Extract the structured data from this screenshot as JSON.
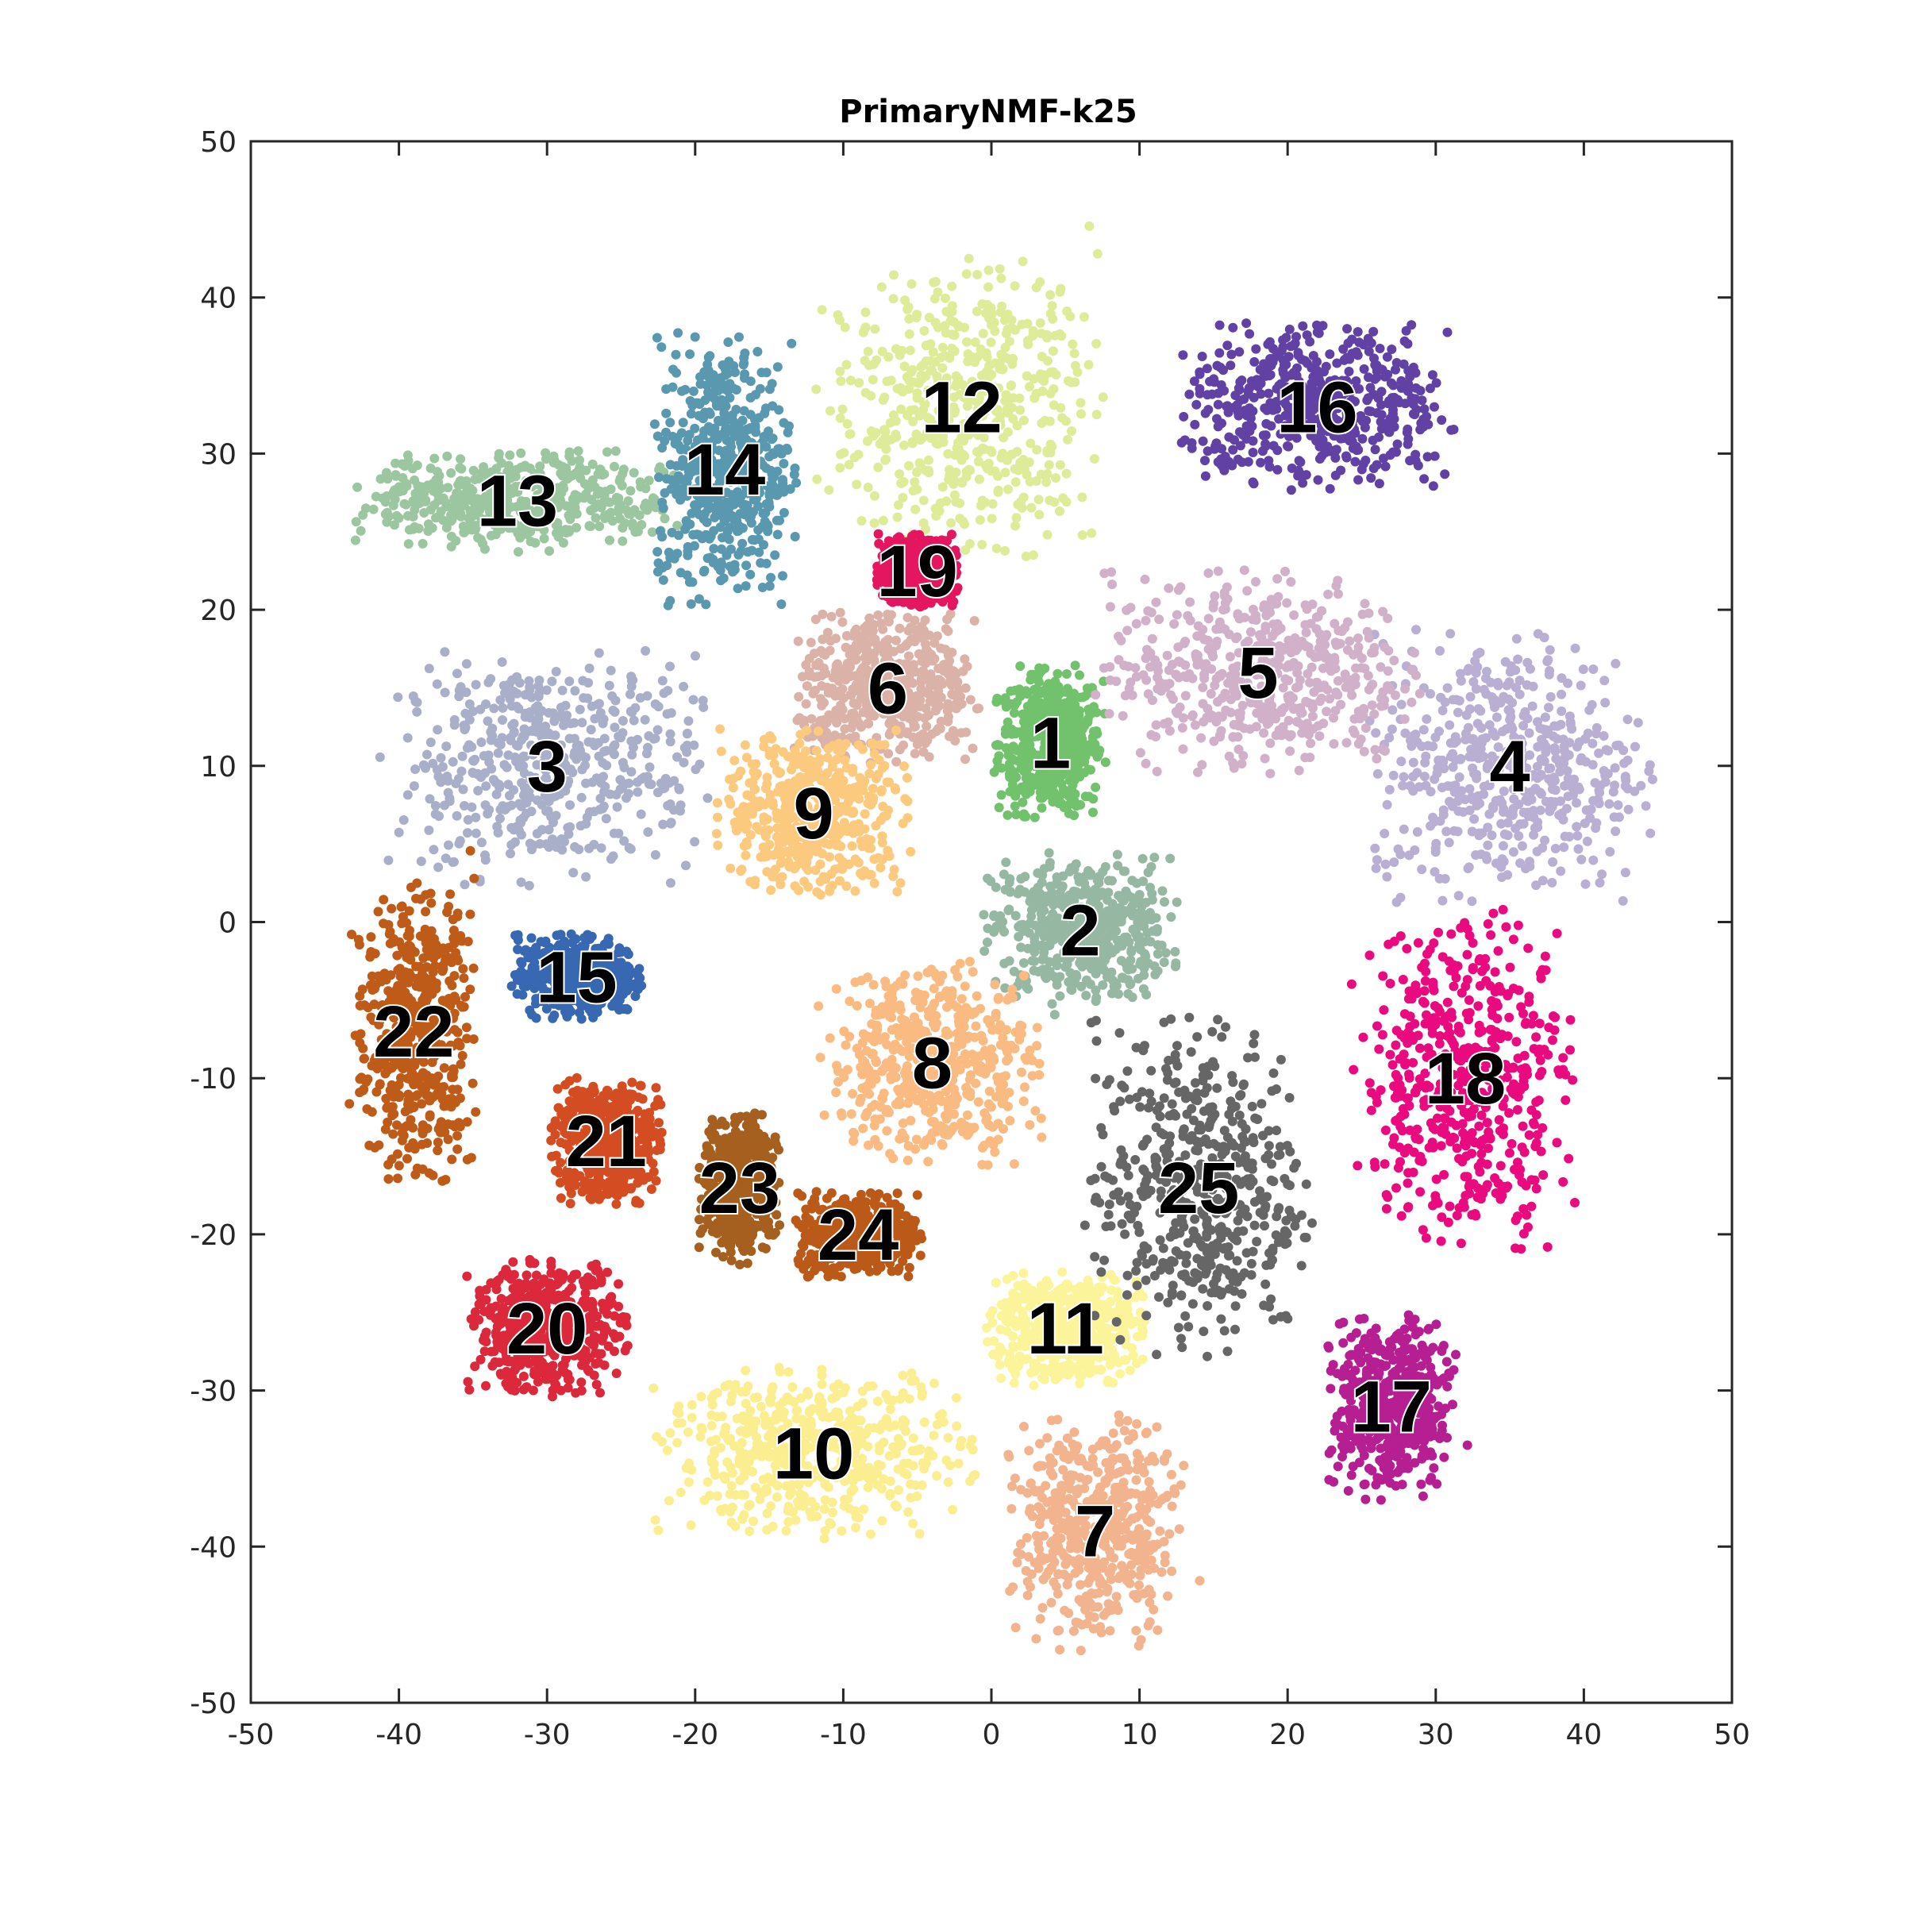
{
  "chart_data": {
    "type": "scatter",
    "title": "PrimaryNMF-k25",
    "xlabel": "",
    "ylabel": "",
    "xlim": [
      -50,
      50
    ],
    "ylim": [
      -50,
      50
    ],
    "xticks": [
      -50,
      -40,
      -30,
      -20,
      -10,
      0,
      10,
      20,
      30,
      40,
      50
    ],
    "yticks": [
      -50,
      -40,
      -30,
      -20,
      -10,
      0,
      10,
      20,
      30,
      40,
      50
    ],
    "grid": false,
    "clusters": [
      {
        "label": "1",
        "center": [
          4,
          11.5
        ],
        "spread": [
          3.5,
          4.5
        ],
        "color": "#72c26d"
      },
      {
        "label": "2",
        "center": [
          6,
          -0.5
        ],
        "spread": [
          6,
          4.5
        ],
        "color": "#96b8a3"
      },
      {
        "label": "3",
        "center": [
          -30,
          10
        ],
        "spread": [
          10,
          7
        ],
        "color": "#a9afc8"
      },
      {
        "label": "4",
        "center": [
          35,
          10
        ],
        "spread": [
          9,
          8
        ],
        "color": "#b8afd2"
      },
      {
        "label": "5",
        "center": [
          18,
          16
        ],
        "spread": [
          10,
          6
        ],
        "color": "#d1b1c9"
      },
      {
        "label": "6",
        "center": [
          -7,
          15
        ],
        "spread": [
          6,
          4.5
        ],
        "color": "#dab2a8"
      },
      {
        "label": "7",
        "center": [
          7,
          -39
        ],
        "spread": [
          5.5,
          7
        ],
        "color": "#f2b48f"
      },
      {
        "label": "8",
        "center": [
          -4,
          -9
        ],
        "spread": [
          7,
          6
        ],
        "color": "#f9bb82"
      },
      {
        "label": "9",
        "center": [
          -12,
          7
        ],
        "spread": [
          6,
          5
        ],
        "color": "#fcca7e"
      },
      {
        "label": "10",
        "center": [
          -12,
          -34
        ],
        "spread": [
          10,
          5
        ],
        "color": "#fbee91"
      },
      {
        "label": "11",
        "center": [
          5,
          -26
        ],
        "spread": [
          5,
          3.5
        ],
        "color": "#fbf49b"
      },
      {
        "label": "12",
        "center": [
          -2,
          33
        ],
        "spread": [
          9,
          9
        ],
        "color": "#deeb99"
      },
      {
        "label": "13",
        "center": [
          -32,
          27
        ],
        "spread": [
          10,
          3
        ],
        "color": "#9cc6a0"
      },
      {
        "label": "14",
        "center": [
          -18,
          29
        ],
        "spread": [
          4.5,
          8
        ],
        "color": "#5998ae"
      },
      {
        "label": "15",
        "center": [
          -28,
          -3.5
        ],
        "spread": [
          4,
          2.5
        ],
        "color": "#3768b1"
      },
      {
        "label": "16",
        "center": [
          22,
          33
        ],
        "spread": [
          9,
          5
        ],
        "color": "#6142a4"
      },
      {
        "label": "17",
        "center": [
          27,
          -31
        ],
        "spread": [
          4,
          5.5
        ],
        "color": "#b51f92"
      },
      {
        "label": "18",
        "center": [
          32,
          -10
        ],
        "spread": [
          7,
          10
        ],
        "color": "#ea0a7f"
      },
      {
        "label": "19",
        "center": [
          -5,
          22.5
        ],
        "spread": [
          2.5,
          2.2
        ],
        "color": "#e3165f"
      },
      {
        "label": "20",
        "center": [
          -30,
          -26
        ],
        "spread": [
          5,
          4
        ],
        "color": "#db283a"
      },
      {
        "label": "21",
        "center": [
          -26,
          -14
        ],
        "spread": [
          3.5,
          4
        ],
        "color": "#d44d22"
      },
      {
        "label": "22",
        "center": [
          -39,
          -7
        ],
        "spread": [
          4,
          9
        ],
        "color": "#bf5b18"
      },
      {
        "label": "23",
        "center": [
          -17,
          -17
        ],
        "spread": [
          2.5,
          4.5
        ],
        "color": "#a55f1f"
      },
      {
        "label": "24",
        "center": [
          -9,
          -20
        ],
        "spread": [
          4,
          2.5
        ],
        "color": "#bb5a18"
      },
      {
        "label": "25",
        "center": [
          14,
          -17
        ],
        "spread": [
          7,
          10
        ],
        "color": "#666666"
      }
    ]
  }
}
